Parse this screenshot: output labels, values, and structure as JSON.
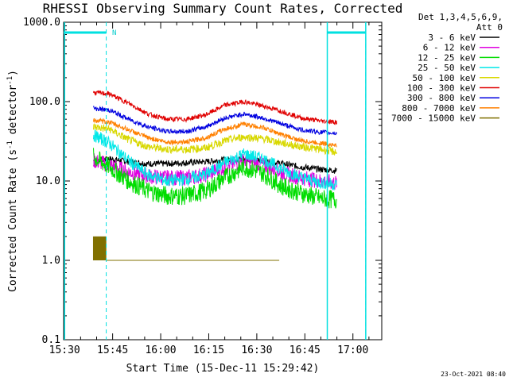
{
  "chart_data": {
    "type": "line",
    "title": "RHESSI Observing Summary Count Rates, Corrected",
    "xlabel": "Start Time (15-Dec-11 15:29:42)",
    "ylabel_main": "Corrected Count Rate (s",
    "ylabel_sup1": "-1",
    "ylabel_mid": " detector",
    "ylabel_sup2": "-1",
    "ylabel_end": ")",
    "yscale": "log",
    "ylim": [
      0.1,
      1000
    ],
    "xlim_minutes": [
      "15:30",
      "17:09"
    ],
    "x_ticks": [
      "15:30",
      "15:45",
      "16:00",
      "16:15",
      "16:30",
      "16:45",
      "17:00"
    ],
    "y_ticks": [
      "0.1",
      "1.0",
      "10.0",
      "100.0",
      "1000.0"
    ],
    "grid": false,
    "legend_placement": "top-right",
    "legend_header": [
      "Det 1,3,4,5,6,9,",
      "Att 0"
    ],
    "attenuator_marker": "N",
    "timestamp": "23-Oct-2021 08:40",
    "series": [
      {
        "name": "3 - 6 keV",
        "color": "#000000",
        "values": [
          [
            "15:39",
            18
          ],
          [
            "15:44",
            19
          ],
          [
            "15:50",
            17.5
          ],
          [
            "15:56",
            16.5
          ],
          [
            "16:02",
            16.5
          ],
          [
            "16:08",
            17
          ],
          [
            "16:14",
            17.5
          ],
          [
            "16:20",
            18.5
          ],
          [
            "16:26",
            19
          ],
          [
            "16:32",
            18
          ],
          [
            "16:38",
            16.5
          ],
          [
            "16:44",
            15
          ],
          [
            "16:50",
            14
          ],
          [
            "16:55",
            13.5
          ]
        ]
      },
      {
        "name": "6 - 12 keV",
        "color": "#e000e0",
        "values": [
          [
            "15:39",
            18
          ],
          [
            "15:44",
            16
          ],
          [
            "15:50",
            13
          ],
          [
            "15:56",
            11.5
          ],
          [
            "16:02",
            11
          ],
          [
            "16:08",
            11
          ],
          [
            "16:14",
            12
          ],
          [
            "16:20",
            15
          ],
          [
            "16:26",
            18
          ],
          [
            "16:32",
            16
          ],
          [
            "16:38",
            12.5
          ],
          [
            "16:44",
            11
          ],
          [
            "16:50",
            10
          ],
          [
            "16:55",
            9.5
          ]
        ]
      },
      {
        "name": "12 - 25 keV",
        "color": "#00dd00",
        "values": [
          [
            "15:39",
            20
          ],
          [
            "15:44",
            15
          ],
          [
            "15:50",
            10
          ],
          [
            "15:56",
            7.5
          ],
          [
            "16:02",
            6.5
          ],
          [
            "16:08",
            6.5
          ],
          [
            "16:14",
            7.5
          ],
          [
            "16:20",
            11
          ],
          [
            "16:26",
            15
          ],
          [
            "16:32",
            12.5
          ],
          [
            "16:38",
            8.5
          ],
          [
            "16:44",
            7
          ],
          [
            "16:50",
            6
          ],
          [
            "16:55",
            5.8
          ]
        ]
      },
      {
        "name": "25 - 50 keV",
        "color": "#00e8e8",
        "values": [
          [
            "15:39",
            38
          ],
          [
            "15:44",
            30
          ],
          [
            "15:50",
            18
          ],
          [
            "15:56",
            12
          ],
          [
            "16:02",
            10
          ],
          [
            "16:08",
            10.5
          ],
          [
            "16:14",
            12
          ],
          [
            "16:20",
            17
          ],
          [
            "16:26",
            22
          ],
          [
            "16:32",
            19
          ],
          [
            "16:38",
            14
          ],
          [
            "16:44",
            11
          ],
          [
            "16:50",
            9.5
          ],
          [
            "16:55",
            9
          ]
        ]
      },
      {
        "name": "50 - 100 keV",
        "color": "#d8d800",
        "values": [
          [
            "15:39",
            48
          ],
          [
            "15:44",
            45
          ],
          [
            "15:50",
            33
          ],
          [
            "15:56",
            27
          ],
          [
            "16:02",
            25
          ],
          [
            "16:08",
            25
          ],
          [
            "16:14",
            26
          ],
          [
            "16:20",
            32
          ],
          [
            "16:26",
            36
          ],
          [
            "16:32",
            34
          ],
          [
            "16:38",
            30
          ],
          [
            "16:44",
            27
          ],
          [
            "16:50",
            25
          ],
          [
            "16:55",
            23
          ]
        ]
      },
      {
        "name": "100 - 300 keV",
        "color": "#e00000",
        "values": [
          [
            "15:39",
            130
          ],
          [
            "15:44",
            125
          ],
          [
            "15:50",
            95
          ],
          [
            "15:56",
            70
          ],
          [
            "16:02",
            60
          ],
          [
            "16:08",
            60
          ],
          [
            "16:14",
            68
          ],
          [
            "16:20",
            90
          ],
          [
            "16:26",
            100
          ],
          [
            "16:32",
            88
          ],
          [
            "16:38",
            75
          ],
          [
            "16:44",
            62
          ],
          [
            "16:50",
            57
          ],
          [
            "16:55",
            55
          ]
        ]
      },
      {
        "name": "300 - 800 keV",
        "color": "#0000e0",
        "values": [
          [
            "15:39",
            82
          ],
          [
            "15:44",
            78
          ],
          [
            "15:50",
            60
          ],
          [
            "15:56",
            48
          ],
          [
            "16:02",
            42
          ],
          [
            "16:08",
            42
          ],
          [
            "16:14",
            48
          ],
          [
            "16:20",
            62
          ],
          [
            "16:26",
            70
          ],
          [
            "16:32",
            62
          ],
          [
            "16:38",
            52
          ],
          [
            "16:44",
            44
          ],
          [
            "16:50",
            41
          ],
          [
            "16:55",
            40
          ]
        ]
      },
      {
        "name": "800 - 7000 keV",
        "color": "#ff8000",
        "values": [
          [
            "15:39",
            58
          ],
          [
            "15:44",
            55
          ],
          [
            "15:50",
            44
          ],
          [
            "15:56",
            35
          ],
          [
            "16:02",
            31
          ],
          [
            "16:08",
            31
          ],
          [
            "16:14",
            35
          ],
          [
            "16:20",
            45
          ],
          [
            "16:26",
            52
          ],
          [
            "16:32",
            47
          ],
          [
            "16:38",
            38
          ],
          [
            "16:44",
            32
          ],
          [
            "16:50",
            30
          ],
          [
            "16:55",
            28
          ]
        ]
      },
      {
        "name": "7000 - 15000 keV",
        "color": "#807000",
        "values": [
          [
            "15:39",
            1.0
          ],
          [
            "15:43",
            1.0
          ]
        ]
      }
    ],
    "annotations": {
      "gaps_cyan": [
        "15:30",
        "16:52",
        "17:04"
      ],
      "dashed_cyan": [
        "15:43",
        "17:04"
      ]
    }
  }
}
